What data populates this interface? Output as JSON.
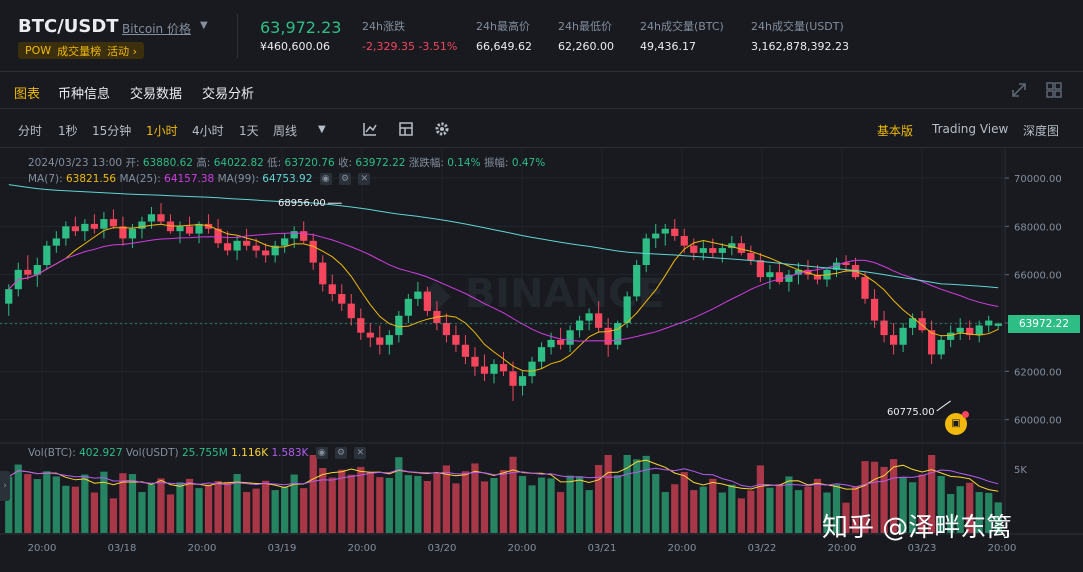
{
  "header": {
    "symbol": "BTC/USDT",
    "symbol_link": "Bitcoin 价格",
    "tags": [
      "POW",
      "成交量榜",
      "活动 ›"
    ],
    "last_price": "63,972.23",
    "last_price_cny": "¥460,600.06",
    "stats": [
      {
        "label": "24h涨跌",
        "value": "-2,329.35 -3.51%",
        "negative": true
      },
      {
        "label": "24h最高价",
        "value": "66,649.62"
      },
      {
        "label": "24h最低价",
        "value": "62,260.00"
      },
      {
        "label": "24h成交量(BTC)",
        "value": "49,436.17"
      },
      {
        "label": "24h成交量(USDT)",
        "value": "3,162,878,392.23"
      }
    ]
  },
  "tabs": [
    "图表",
    "币种信息",
    "交易数据",
    "交易分析"
  ],
  "intervals": [
    "分时",
    "1秒",
    "15分钟",
    "1小时",
    "4小时",
    "1天",
    "周线"
  ],
  "active_interval": "1小时",
  "views": [
    "基本版",
    "Trading View",
    "深度图"
  ],
  "active_view": "基本版",
  "ohlc": {
    "date": "2024/03/23 13:00",
    "open_label": "开:",
    "open": "63880.62",
    "high_label": "高:",
    "high": "64022.82",
    "low_label": "低:",
    "low": "63720.76",
    "close_label": "收:",
    "close": "63972.22",
    "change_label": "涨跌幅:",
    "change": "0.14%",
    "amp_label": "振幅:",
    "amp": "0.47%"
  },
  "ma": {
    "ma7_label": "MA(7):",
    "ma7": "63821.56",
    "ma25_label": "MA(25):",
    "ma25": "64157.38",
    "ma99_label": "MA(99):",
    "ma99": "64753.92"
  },
  "vol": {
    "btc_label": "Vol(BTC):",
    "btc": "402.927",
    "usdt_label": "Vol(USDT)",
    "usdt": "25.755M",
    "ma1": "1.116K",
    "ma2": "1.583K"
  },
  "current_price_tag": "63972.22",
  "watermark_text": "知乎 @泽畔东篱",
  "colors": {
    "up": "#2ebd85",
    "down": "#f6465d",
    "accent": "#f0b90b",
    "bg": "#181a20",
    "ma7": "#f0b90b",
    "ma25": "#d13ce0",
    "ma99": "#60d5d2"
  },
  "chart_data": {
    "type": "candlestick",
    "y_ticks": [
      "70000.00",
      "68000.00",
      "66000.00",
      "64000.00",
      "62000.00",
      "60000.00"
    ],
    "y_range": [
      59200,
      71200
    ],
    "vol_tick": "5K",
    "x_ticks": [
      "20:00",
      "03/18",
      "20:00",
      "03/19",
      "20:00",
      "03/20",
      "20:00",
      "03/21",
      "20:00",
      "03/22",
      "20:00",
      "03/23",
      "20:00"
    ],
    "annotations": [
      {
        "text": "68956.00",
        "type": "high",
        "value": 68956,
        "bar": 35
      },
      {
        "text": "60775.00",
        "type": "low",
        "value": 60775,
        "bar": 99
      }
    ],
    "candles_approx": [
      [
        64800,
        65600,
        64300,
        65400
      ],
      [
        65400,
        66500,
        65100,
        66200
      ],
      [
        66200,
        66800,
        65800,
        66000
      ],
      [
        66000,
        66700,
        65500,
        66400
      ],
      [
        66400,
        67400,
        66200,
        67200
      ],
      [
        67200,
        67800,
        66900,
        67500
      ],
      [
        67500,
        68200,
        67200,
        68000
      ],
      [
        68000,
        68400,
        67600,
        67800
      ],
      [
        67800,
        68300,
        67400,
        68100
      ],
      [
        68100,
        68500,
        67700,
        67900
      ],
      [
        67900,
        68600,
        67500,
        68300
      ],
      [
        68300,
        68700,
        67900,
        68000
      ],
      [
        68000,
        68400,
        67200,
        67500
      ],
      [
        67500,
        68100,
        67100,
        67900
      ],
      [
        67900,
        68400,
        67500,
        68200
      ],
      [
        68200,
        68800,
        67900,
        68500
      ],
      [
        68500,
        68956,
        68100,
        68200
      ],
      [
        68200,
        68500,
        67700,
        67800
      ],
      [
        67800,
        68200,
        67300,
        68000
      ],
      [
        68000,
        68400,
        67600,
        67700
      ],
      [
        67700,
        68200,
        67300,
        68100
      ],
      [
        68100,
        68500,
        67700,
        67900
      ],
      [
        67900,
        68300,
        67100,
        67300
      ],
      [
        67300,
        67800,
        66800,
        67000
      ],
      [
        67000,
        67600,
        66600,
        67400
      ],
      [
        67400,
        67900,
        67000,
        67200
      ],
      [
        67200,
        67500,
        66700,
        67000
      ],
      [
        67000,
        67300,
        66500,
        66800
      ],
      [
        66800,
        67400,
        66500,
        67200
      ],
      [
        67200,
        67700,
        66900,
        67500
      ],
      [
        67500,
        68000,
        67100,
        67800
      ],
      [
        67800,
        68200,
        67300,
        67400
      ],
      [
        67400,
        67700,
        66200,
        66500
      ],
      [
        66500,
        66800,
        65300,
        65600
      ],
      [
        65600,
        66000,
        64900,
        65200
      ],
      [
        65200,
        65600,
        64500,
        64800
      ],
      [
        64800,
        65200,
        63900,
        64200
      ],
      [
        64200,
        64600,
        63300,
        63600
      ],
      [
        63600,
        64000,
        63000,
        63400
      ],
      [
        63400,
        63900,
        62700,
        63100
      ],
      [
        63100,
        63700,
        62700,
        63500
      ],
      [
        63500,
        64500,
        63200,
        64300
      ],
      [
        64300,
        65200,
        64000,
        65000
      ],
      [
        65000,
        65700,
        64700,
        65300
      ],
      [
        65300,
        65500,
        64300,
        64500
      ],
      [
        64500,
        64900,
        63700,
        64000
      ],
      [
        64000,
        64400,
        63200,
        63500
      ],
      [
        63500,
        63900,
        62800,
        63100
      ],
      [
        63100,
        63500,
        62300,
        62600
      ],
      [
        62600,
        63000,
        61800,
        62200
      ],
      [
        62200,
        62700,
        61600,
        61900
      ],
      [
        61900,
        62500,
        61500,
        62300
      ],
      [
        62300,
        62800,
        61800,
        62000
      ],
      [
        62000,
        62400,
        60775,
        61400
      ],
      [
        61400,
        62000,
        61000,
        61800
      ],
      [
        61800,
        62600,
        61500,
        62400
      ],
      [
        62400,
        63200,
        62100,
        63000
      ],
      [
        63000,
        63600,
        62700,
        63300
      ],
      [
        63300,
        63800,
        62900,
        63100
      ],
      [
        63100,
        63900,
        62800,
        63700
      ],
      [
        63700,
        64300,
        63400,
        64100
      ],
      [
        64100,
        64600,
        63700,
        64400
      ],
      [
        64400,
        64900,
        63600,
        63800
      ],
      [
        63800,
        64200,
        62600,
        63100
      ],
      [
        63100,
        64100,
        62900,
        64000
      ],
      [
        64000,
        65300,
        63800,
        65100
      ],
      [
        65100,
        66600,
        64900,
        66400
      ],
      [
        66400,
        67700,
        66100,
        67500
      ],
      [
        67500,
        68100,
        67100,
        67700
      ],
      [
        67700,
        68100,
        67200,
        67900
      ],
      [
        67900,
        68300,
        67400,
        67600
      ],
      [
        67600,
        67900,
        66900,
        67200
      ],
      [
        67200,
        67500,
        66600,
        66900
      ],
      [
        66900,
        67400,
        66600,
        67100
      ],
      [
        67100,
        67500,
        66700,
        66900
      ],
      [
        66900,
        67300,
        66500,
        67100
      ],
      [
        67100,
        67600,
        66800,
        67300
      ],
      [
        67300,
        67600,
        66800,
        66900
      ],
      [
        66900,
        67200,
        66400,
        66600
      ],
      [
        66600,
        66900,
        65700,
        65900
      ],
      [
        65900,
        66400,
        65400,
        66100
      ],
      [
        66100,
        66500,
        65600,
        65700
      ],
      [
        65700,
        66200,
        65300,
        66000
      ],
      [
        66000,
        66500,
        65600,
        66200
      ],
      [
        66200,
        66600,
        65800,
        66000
      ],
      [
        66000,
        66400,
        65600,
        65800
      ],
      [
        65800,
        66300,
        65500,
        66200
      ],
      [
        66200,
        66700,
        65900,
        66500
      ],
      [
        66500,
        66800,
        66100,
        66400
      ],
      [
        66400,
        66700,
        65800,
        65900
      ],
      [
        65900,
        66100,
        64800,
        65000
      ],
      [
        65000,
        65400,
        63800,
        64100
      ],
      [
        64100,
        64500,
        63200,
        63500
      ],
      [
        63500,
        64000,
        62700,
        63100
      ],
      [
        63100,
        64000,
        62800,
        63800
      ],
      [
        63800,
        64400,
        63500,
        64200
      ],
      [
        64200,
        64500,
        63600,
        63700
      ],
      [
        63700,
        64100,
        62300,
        62700
      ],
      [
        62700,
        63500,
        62500,
        63300
      ],
      [
        63300,
        63900,
        63000,
        63600
      ],
      [
        63600,
        64200,
        63300,
        63800
      ],
      [
        63800,
        64100,
        63300,
        63500
      ],
      [
        63500,
        64100,
        63200,
        63900
      ],
      [
        63900,
        64300,
        63600,
        64100
      ],
      [
        63880,
        64022,
        63720,
        63972
      ]
    ]
  }
}
